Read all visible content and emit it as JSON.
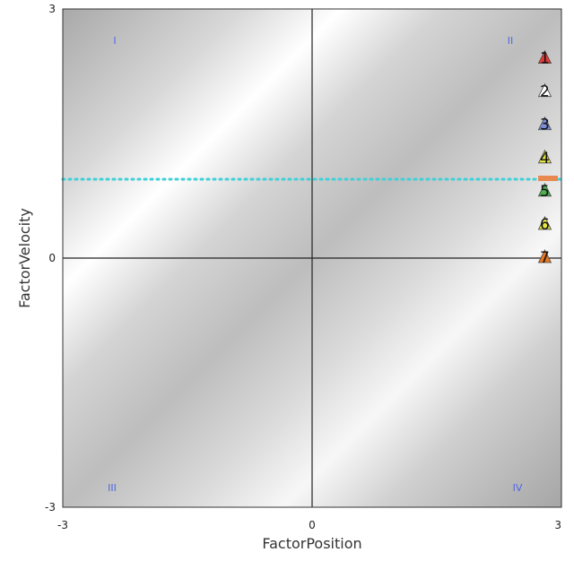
{
  "chart_data": {
    "type": "scatter",
    "xlabel": "FactorPosition",
    "ylabel": "FactorVelocity",
    "xlim": [
      -3,
      3
    ],
    "ylim": [
      -3,
      3
    ],
    "x_ticks": [
      "-3",
      "0",
      "3"
    ],
    "y_ticks": [
      "3",
      "0",
      "-3"
    ],
    "quadrant_labels": [
      "I",
      "II",
      "III",
      "IV"
    ],
    "reference_line": {
      "axis": "y",
      "value": 0.95,
      "style": "dotted",
      "color": "#3fd0d8"
    },
    "points": [
      {
        "label": "1",
        "x": 2.8,
        "y": 2.4,
        "color": "#e53935"
      },
      {
        "label": "2",
        "x": 2.8,
        "y": 2.0,
        "color": "#ffffff"
      },
      {
        "label": "3",
        "x": 2.8,
        "y": 1.6,
        "color": "#7e8fd6"
      },
      {
        "label": "4",
        "x": 2.8,
        "y": 1.2,
        "color": "#e5e545"
      },
      {
        "label": "5",
        "x": 2.8,
        "y": 0.8,
        "color": "#4caf50"
      },
      {
        "label": "6",
        "x": 2.8,
        "y": 0.4,
        "color": "#e5e545"
      },
      {
        "label": "7",
        "x": 2.8,
        "y": 0.0,
        "color": "#e87722"
      }
    ],
    "grid": false,
    "background": "gradient"
  }
}
